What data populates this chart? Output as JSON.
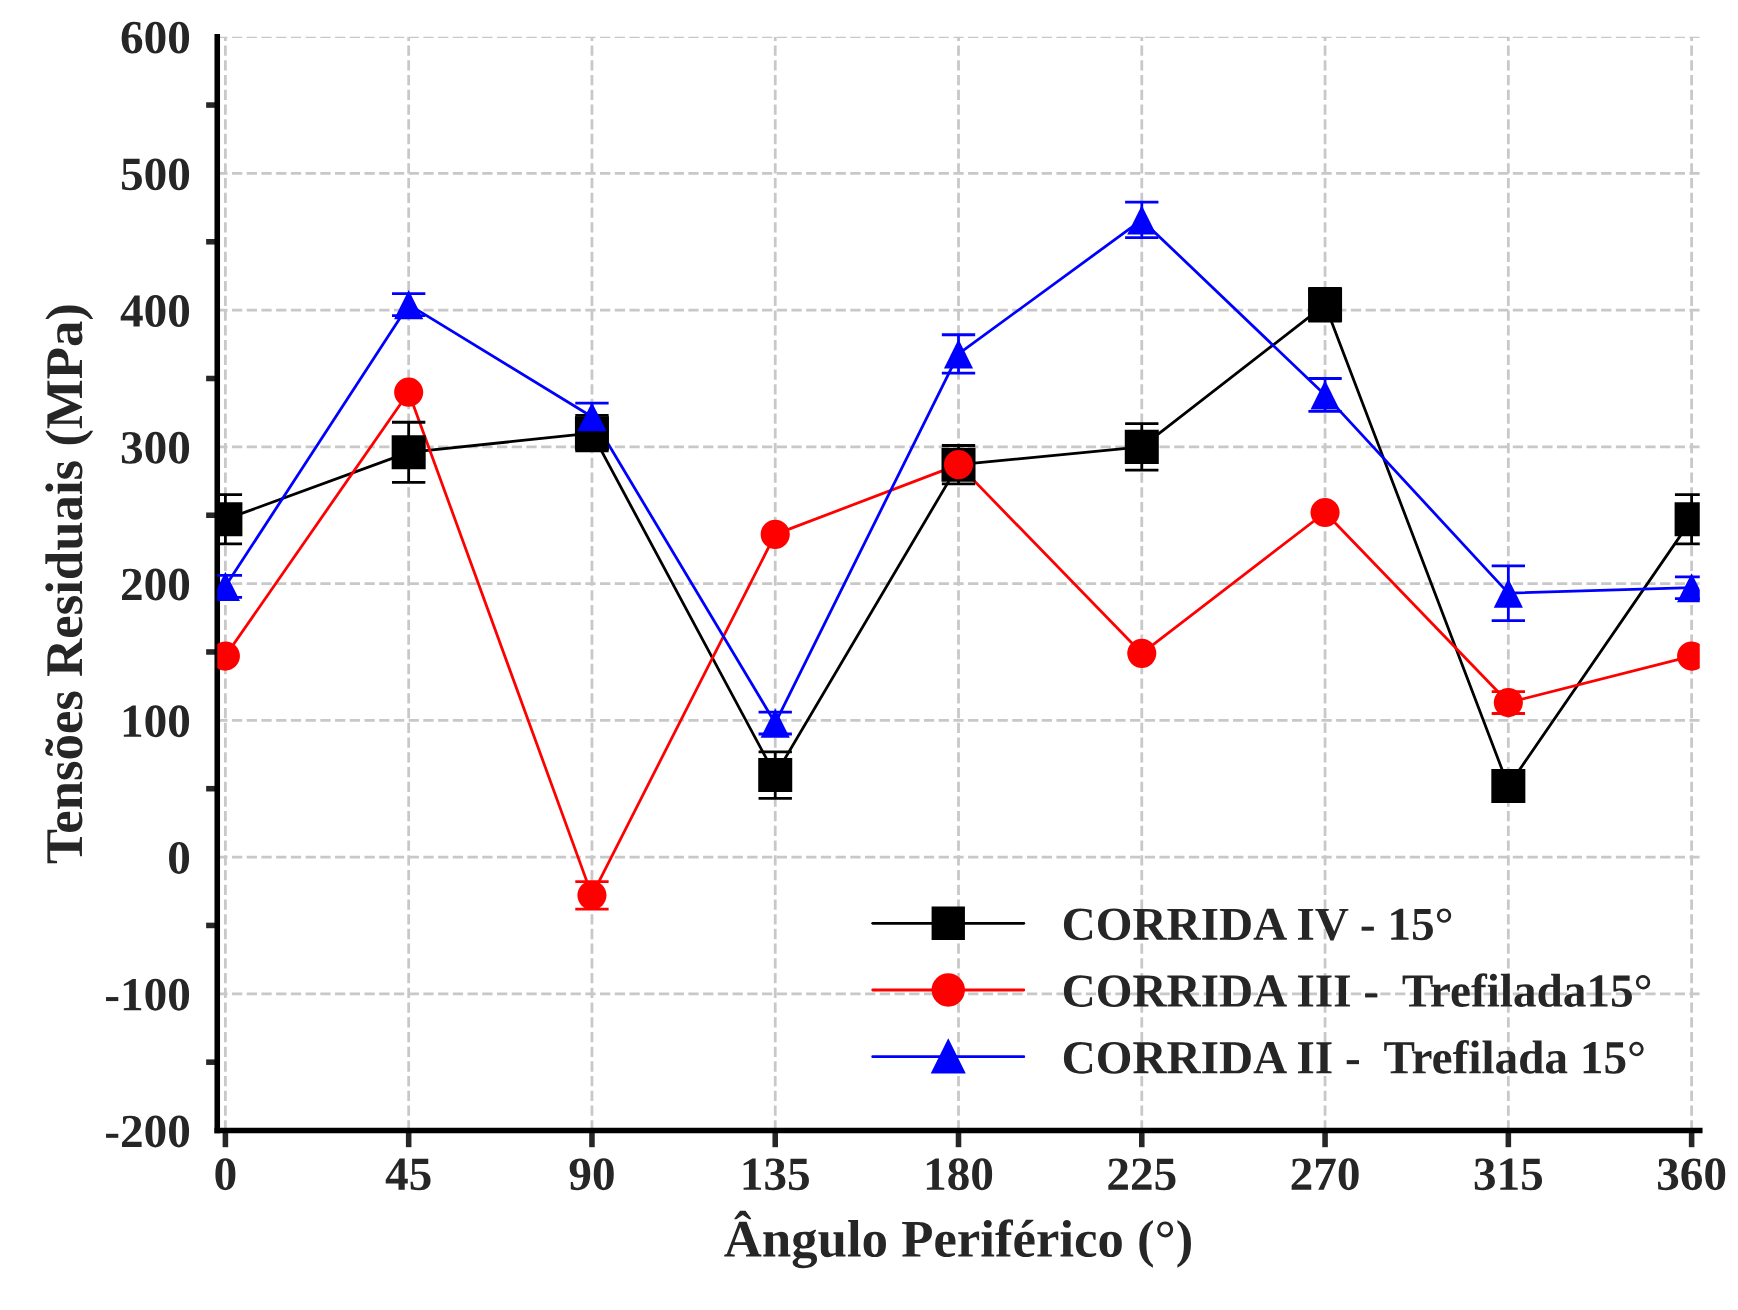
{
  "chart_data": {
    "type": "line",
    "xlabel": "Ângulo Periférico (°)",
    "ylabel": "Tensões Residuais (MPa)",
    "x": [
      0,
      45,
      90,
      135,
      180,
      225,
      270,
      315,
      360
    ],
    "series": [
      {
        "name": "CORRIDA IV - 15°",
        "color": "#000000",
        "marker": "square",
        "values": [
          247,
          296,
          310,
          60,
          287,
          300,
          404,
          52,
          247
        ],
        "errors": [
          18,
          22,
          13,
          17,
          14,
          17,
          12,
          null,
          18
        ]
      },
      {
        "name": "CORRIDA III -  Trefilada15°",
        "color": "#ff0000",
        "marker": "circle",
        "values": [
          147,
          340,
          -28,
          236,
          287,
          149,
          252,
          113,
          147
        ],
        "errors": [
          null,
          null,
          10,
          null,
          null,
          null,
          null,
          8,
          null
        ]
      },
      {
        "name": "CORRIDA II -  Trefilada 15°",
        "color": "#0000ff",
        "marker": "triangle",
        "values": [
          198,
          404,
          322,
          98,
          368,
          466,
          338,
          193,
          197
        ],
        "errors": [
          8,
          8,
          10,
          8,
          14,
          13,
          12,
          20,
          8
        ]
      }
    ],
    "xlim": [
      -2,
      362
    ],
    "xticks": [
      0,
      45,
      90,
      135,
      180,
      225,
      270,
      315,
      360
    ],
    "ylim": [
      -200,
      600
    ],
    "yticks": [
      -200,
      -100,
      0,
      100,
      200,
      300,
      400,
      500,
      600
    ],
    "grid": true,
    "legend": "bottom right",
    "line_style": "solid"
  }
}
